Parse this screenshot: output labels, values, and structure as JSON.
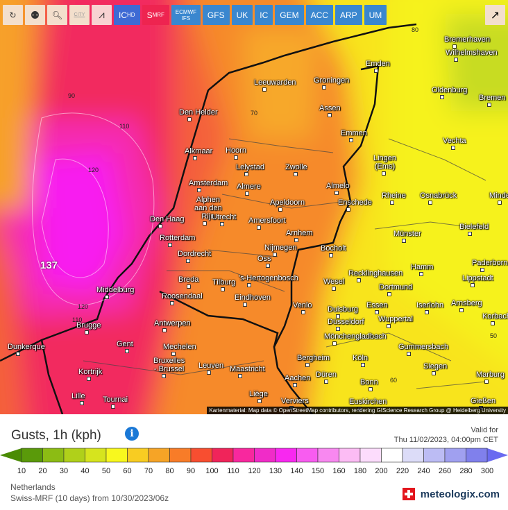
{
  "toolbar": {
    "icons": [
      "refresh-icon",
      "location-pin-icon",
      "zoom-out-icon",
      "city-labels-icon",
      "wind-trajectory-icon"
    ],
    "city_label": "CITY",
    "models": [
      {
        "label": "IC",
        "sub": "HD"
      },
      {
        "label": "S",
        "sub": "MRF",
        "active": true
      },
      {
        "label": "ECMWF IFS"
      },
      {
        "label": "GFS"
      },
      {
        "label": "UK"
      },
      {
        "label": "IC"
      },
      {
        "label": "GEM"
      },
      {
        "label": "ACC"
      },
      {
        "label": "ARP"
      },
      {
        "label": "UM"
      }
    ],
    "share_icon": "share-icon"
  },
  "map": {
    "cities": [
      "Bremerhaven",
      "Wilhelmshaven",
      "Emden",
      "Leeuwarden",
      "Groningen",
      "Oldenburg",
      "Bremen",
      "Den Helder",
      "Assen",
      "Emmen",
      "Vechta",
      "Alkmaar",
      "Hoorn",
      "Lelystad",
      "Zwolle",
      "Lingen\n(Ems)",
      "Amsterdam",
      "Almere",
      "Almelo",
      "Alphen\naan den\nRijn",
      "Apeldoorn",
      "Enschede",
      "Rheine",
      "Osnabrück",
      "Minden",
      "Den Haag",
      "Utrecht",
      "Amersfoort",
      "Bielefeld",
      "Münster",
      "Arnhem",
      "Rotterdam",
      "Nijmegen",
      "Bocholt",
      "Dordrecht",
      "Oss",
      "Hamm",
      "Paderborn",
      "Recklinghausen",
      "Breda",
      "Tilburg",
      "'s-Hertogenbosch",
      "Wesel",
      "Dortmund",
      "Lippstadt",
      "Middelburg",
      "Roosendaal",
      "Eindhoven",
      "Venlo",
      "Duisburg",
      "Essen",
      "Iserlohn",
      "Arnsberg",
      "Brugge",
      "Antwerpen",
      "Düsseldorf",
      "Wuppertal",
      "Korbach",
      "Mönchengladbach",
      "Dunkerque",
      "Gent",
      "Mechelen",
      "Gummersbach",
      "Bruxelles\n- Brussel",
      "Leuven",
      "Maastricht",
      "Bergheim",
      "Kortrijk",
      "Köln",
      "Siegen",
      "Aachen",
      "Düren",
      "Marburg",
      "Bonn",
      "Lille",
      "Tournai",
      "Liège",
      "Verviers",
      "Euskirchen",
      "Gießen"
    ],
    "contour_labels": [
      "90",
      "110",
      "120",
      "137",
      "120",
      "110",
      "80",
      "70",
      "60",
      "50"
    ],
    "attribution": "Kartenmaterial: Map data © OpenStreetMap contributors, rendering GIScience Research Group @ Heidelberg University"
  },
  "legend": {
    "title": "Gusts, 1h (kph)",
    "info_icon": "info-icon",
    "valid_label": "Valid for",
    "valid_time": "Thu 11/02/2023, 04:00pm CET",
    "ticks": [
      "10",
      "20",
      "30",
      "40",
      "50",
      "60",
      "70",
      "80",
      "90",
      "100",
      "110",
      "120",
      "130",
      "140",
      "150",
      "160",
      "180",
      "200",
      "220",
      "240",
      "260",
      "280",
      "300"
    ],
    "colors": [
      "#5a9a0a",
      "#8cbc14",
      "#b0d01a",
      "#d6e41e",
      "#f8f81e",
      "#f8cc22",
      "#f6a426",
      "#f87c28",
      "#f84e30",
      "#f0245a",
      "#f8289e",
      "#f02cc8",
      "#f828f0",
      "#f85cf0",
      "#f888f0",
      "#fcbcf4",
      "#fcdcfc",
      "#ffffff",
      "#dcdcf8",
      "#bcbcf4",
      "#a0a0f0",
      "#8080ec"
    ],
    "low_color": "#4a8c04",
    "high_color": "#6a6af0",
    "region": "Netherlands",
    "run": "Swiss-MRF  (10 days)  from 10/30/2023/06z",
    "brand": "meteologix.com"
  }
}
